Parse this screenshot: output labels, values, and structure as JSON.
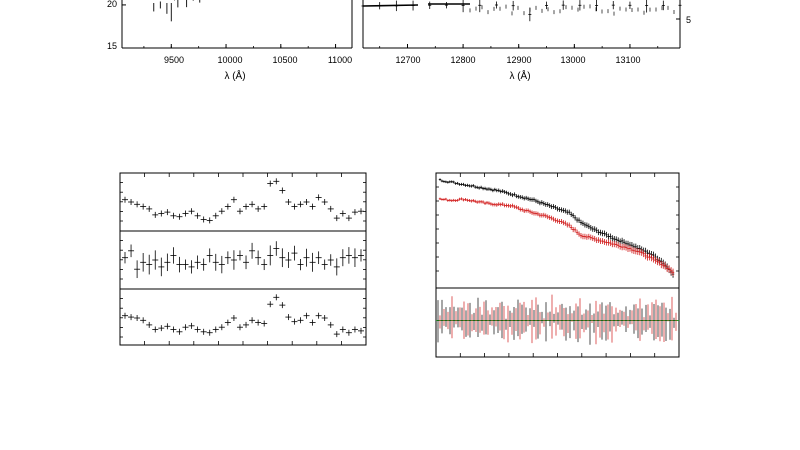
{
  "chart_data": [
    {
      "type": "scatter",
      "panel": "top-left",
      "xlabel": "λ (Å)",
      "xlim": [
        9050,
        11150
      ],
      "ylim": [
        15,
        21.5
      ],
      "x_ticks": [
        9500,
        10000,
        10500,
        11000
      ],
      "y_ticks": [
        15,
        20
      ],
      "error_bars": true,
      "series": [
        {
          "color": "#000000",
          "x": [
            9300,
            9340,
            9370,
            9400,
            9430,
            9460,
            9480,
            9500,
            9530,
            9560,
            9600,
            9640,
            9700,
            9760,
            9820,
            9900
          ],
          "y": [
            21.5,
            20.2,
            21.5,
            20.4,
            21.5,
            19.9,
            21.5,
            19.2,
            21.5,
            20.6,
            21.5,
            20.8,
            21.5,
            21.0,
            21.5,
            21.5
          ]
        }
      ]
    },
    {
      "type": "scatter",
      "panel": "top-right",
      "xlabel": "λ (Å)",
      "xlim": [
        12620,
        13190
      ],
      "x_ticks": [
        12700,
        12800,
        12900,
        13000,
        13100
      ],
      "y2_ticks": [
        5
      ],
      "error_bars": true,
      "series": [
        {
          "color": "#000000",
          "x": [
            12620,
            12650,
            12680,
            12710,
            12740,
            12770,
            12800,
            12830,
            12860,
            12890,
            12920,
            12950,
            12980,
            13010,
            13040,
            13070,
            13100,
            13130,
            13160,
            13190
          ],
          "y": [
            5.7,
            5.72,
            5.71,
            5.73,
            5.75,
            5.76,
            5.74,
            5.75,
            5.77,
            5.72,
            5.1,
            5.74,
            5.76,
            5.75,
            5.74,
            5.76,
            5.75,
            5.73,
            5.74,
            5.75
          ]
        }
      ]
    },
    {
      "type": "scatter",
      "panel": "bottom-left",
      "stacked_panels": 3,
      "error_bars": true,
      "series": [
        {
          "name": "",
          "color": "#000000",
          "values": [
            0.55,
            0.5,
            0.45,
            0.4,
            0.35,
            0.22,
            0.25,
            0.28,
            0.2,
            0.18,
            0.25,
            0.3,
            0.2,
            0.12,
            0.1,
            0.2,
            0.3,
            0.4,
            0.55,
            0.3,
            0.4,
            0.45,
            0.35,
            0.4,
            0.9,
            0.95,
            0.75,
            0.5,
            0.4,
            0.45,
            0.5,
            0.4,
            0.6,
            0.5,
            0.35,
            0.15,
            0.25,
            0.15,
            0.28,
            0.3
          ]
        },
        {
          "name": "",
          "color": "#000000",
          "values": [
            0.55,
            0.7,
            0.3,
            0.45,
            0.4,
            0.5,
            0.35,
            0.45,
            0.6,
            0.4,
            0.4,
            0.35,
            0.45,
            0.4,
            0.6,
            0.45,
            0.4,
            0.55,
            0.5,
            0.6,
            0.45,
            0.7,
            0.55,
            0.4,
            0.6,
            0.75,
            0.55,
            0.5,
            0.65,
            0.4,
            0.55,
            0.45,
            0.55,
            0.4,
            0.5,
            0.35,
            0.55,
            0.6,
            0.55,
            0.6
          ]
        },
        {
          "name": "",
          "color": "#000000",
          "values": [
            0.55,
            0.52,
            0.5,
            0.45,
            0.35,
            0.25,
            0.28,
            0.32,
            0.25,
            0.2,
            0.3,
            0.33,
            0.25,
            0.2,
            0.18,
            0.25,
            0.3,
            0.4,
            0.5,
            0.3,
            0.35,
            0.45,
            0.4,
            0.38,
            0.8,
            0.95,
            0.78,
            0.52,
            0.42,
            0.45,
            0.55,
            0.4,
            0.55,
            0.5,
            0.35,
            0.15,
            0.25,
            0.18,
            0.25,
            0.22
          ]
        }
      ]
    },
    {
      "type": "scatter",
      "panel": "bottom-right",
      "stacked_panels": 2,
      "error_bars": true,
      "series": [
        {
          "name": "",
          "color": "#000000",
          "panel": "upper",
          "x": [
            0.0,
            0.05,
            0.1,
            0.15,
            0.2,
            0.25,
            0.3,
            0.35,
            0.4,
            0.45,
            0.5,
            0.55,
            0.6,
            0.65,
            0.7,
            0.75,
            0.8,
            0.85,
            0.9,
            0.95,
            1.0
          ],
          "y": [
            0.98,
            0.96,
            0.94,
            0.92,
            0.9,
            0.88,
            0.85,
            0.82,
            0.79,
            0.75,
            0.71,
            0.67,
            0.58,
            0.52,
            0.47,
            0.42,
            0.38,
            0.33,
            0.28,
            0.2,
            0.08
          ]
        },
        {
          "name": "",
          "color": "#d11a1a",
          "panel": "upper",
          "x": [
            0.0,
            0.05,
            0.1,
            0.15,
            0.2,
            0.25,
            0.3,
            0.35,
            0.4,
            0.45,
            0.5,
            0.55,
            0.6,
            0.65,
            0.7,
            0.75,
            0.8,
            0.85,
            0.9,
            0.95,
            1.0
          ],
          "y": [
            0.8,
            0.79,
            0.8,
            0.78,
            0.76,
            0.75,
            0.74,
            0.7,
            0.67,
            0.64,
            0.6,
            0.55,
            0.46,
            0.43,
            0.4,
            0.37,
            0.34,
            0.3,
            0.24,
            0.18,
            0.1
          ]
        },
        {
          "name": "",
          "color": "#2a9a2a",
          "panel": "lower",
          "reference_line": 0.5
        }
      ]
    }
  ]
}
